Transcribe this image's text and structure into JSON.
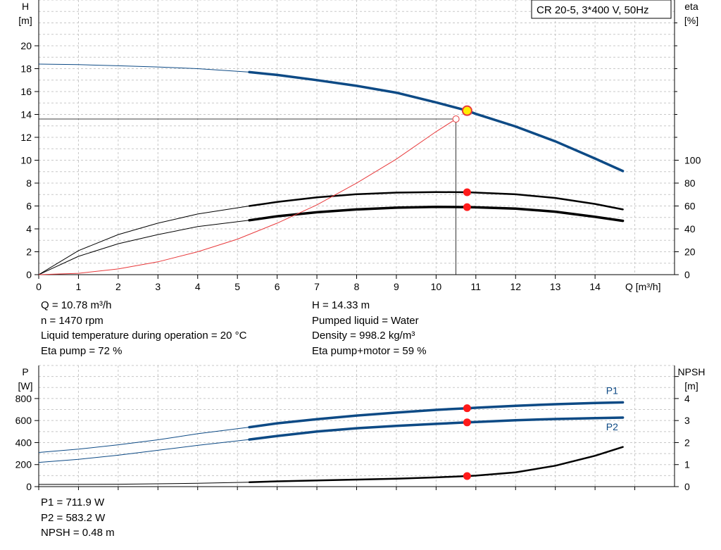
{
  "title_box": "CR 20-5, 3*400 V, 50Hz",
  "chart_data": [
    {
      "type": "line",
      "name": "Head and efficiency",
      "x_axis": {
        "label": "Q [m³/h]",
        "range": [
          0,
          16
        ],
        "ticks": [
          0,
          1,
          2,
          3,
          4,
          5,
          6,
          7,
          8,
          9,
          10,
          11,
          12,
          13,
          14
        ]
      },
      "y_axis_left": {
        "label_top": "H",
        "label_unit": "[m]",
        "range": [
          0,
          24
        ],
        "ticks": [
          0,
          2,
          4,
          6,
          8,
          10,
          12,
          14,
          16,
          18,
          20
        ]
      },
      "y_axis_right": {
        "label_top": "eta",
        "label_unit": "[%]",
        "range": [
          0,
          240
        ],
        "ticks": [
          0,
          20,
          40,
          60,
          80,
          100
        ]
      },
      "grid": true,
      "series": [
        {
          "key": "H",
          "axis": "left",
          "color": "#0d4a85",
          "x": [
            0,
            1,
            2,
            3,
            4,
            5.3,
            6,
            7,
            8,
            9,
            10,
            10.78,
            11,
            12,
            13,
            14,
            14.7
          ],
          "y": [
            18.4,
            18.35,
            18.25,
            18.15,
            18.0,
            17.7,
            17.45,
            17.0,
            16.5,
            15.9,
            15.05,
            14.33,
            14.05,
            12.95,
            11.65,
            10.15,
            9.05
          ],
          "thick_from": 5.3
        },
        {
          "key": "eta_pump",
          "axis": "right",
          "color": "#000000",
          "x": [
            0,
            1,
            2,
            3,
            4,
            5.3,
            6,
            7,
            8,
            9,
            10,
            10.78,
            11,
            12,
            13,
            14,
            14.7
          ],
          "y": [
            0,
            21,
            35,
            45,
            53,
            60,
            63.5,
            67.5,
            70.3,
            71.7,
            72.2,
            72,
            71.7,
            70.2,
            67,
            61.8,
            57
          ],
          "thick_from": 5.3
        },
        {
          "key": "eta_pump_motor",
          "axis": "right",
          "color": "#000000",
          "x": [
            0,
            1,
            2,
            3,
            4,
            5.3,
            6,
            7,
            8,
            9,
            10,
            10.78,
            11,
            12,
            13,
            14,
            14.7
          ],
          "y": [
            0,
            16,
            27,
            35,
            42,
            47.5,
            51,
            54.5,
            57,
            58.5,
            59.2,
            59,
            58.8,
            57.7,
            55,
            50.5,
            47
          ],
          "thick_from": 5.3
        },
        {
          "key": "system",
          "axis": "left",
          "color": "#e8393b",
          "x": [
            0,
            1,
            2,
            3,
            4,
            5,
            6,
            7,
            8,
            9,
            10,
            10.5
          ],
          "y": [
            0,
            0.12,
            0.5,
            1.12,
            2.0,
            3.1,
            4.5,
            6.1,
            8.0,
            10.1,
            12.5,
            13.6
          ]
        }
      ],
      "duty_point": {
        "q": 10.78,
        "h": 14.33,
        "eta_pump": 72,
        "eta_pump_motor": 59
      },
      "system_point": {
        "q": 10.5,
        "h": 13.6
      }
    },
    {
      "type": "line",
      "name": "Power and NPSH",
      "x_axis": {
        "range": [
          0,
          16
        ]
      },
      "y_axis_left": {
        "label_top": "P",
        "label_unit": "[W]",
        "range": [
          0,
          1100
        ],
        "ticks": [
          0,
          200,
          400,
          600,
          800
        ]
      },
      "y_axis_right": {
        "label_top": "NPSH",
        "label_unit": "[m]",
        "range": [
          0,
          5.5
        ],
        "ticks": [
          0,
          1,
          2,
          3,
          4
        ]
      },
      "grid": true,
      "series": [
        {
          "key": "P1",
          "label": "P1",
          "axis": "left",
          "color": "#0d4a85",
          "x": [
            0,
            1,
            2,
            3,
            4,
            5.3,
            6,
            7,
            8,
            9,
            10,
            10.78,
            11,
            12,
            13,
            14,
            14.7
          ],
          "y": [
            310,
            340,
            380,
            425,
            480,
            540,
            575,
            612,
            645,
            672,
            697,
            711.9,
            716,
            734,
            748,
            760,
            765
          ],
          "thick_from": 5.3
        },
        {
          "key": "P2",
          "label": "P2",
          "axis": "left",
          "color": "#0d4a85",
          "x": [
            0,
            1,
            2,
            3,
            4,
            5.3,
            6,
            7,
            8,
            9,
            10,
            10.78,
            11,
            12,
            13,
            14,
            14.7
          ],
          "y": [
            220,
            248,
            285,
            330,
            375,
            428,
            460,
            500,
            530,
            552,
            570,
            583.2,
            587,
            603,
            614,
            622,
            627
          ],
          "thick_from": 5.3
        },
        {
          "key": "NPSH",
          "axis": "right",
          "color": "#000000",
          "x": [
            0,
            2,
            4,
            5.3,
            6,
            7,
            8,
            9,
            10,
            10.78,
            11,
            12,
            13,
            14,
            14.7
          ],
          "y": [
            0.1,
            0.11,
            0.15,
            0.2,
            0.24,
            0.28,
            0.32,
            0.36,
            0.42,
            0.48,
            0.5,
            0.65,
            0.95,
            1.4,
            1.8
          ],
          "thick_from": 5.3
        }
      ],
      "duty_point": {
        "q": 10.78,
        "P1": 711.9,
        "P2": 583.2,
        "NPSH": 0.48
      }
    }
  ],
  "info_upper": {
    "col1": [
      "Q = 10.78 m³/h",
      "n = 1470 rpm",
      "Liquid temperature during operation = 20 °C",
      "Eta pump = 72 %"
    ],
    "col2": [
      "H = 14.33 m",
      "Pumped liquid = Water",
      "Density = 998.2 kg/m³",
      "Eta pump+motor = 59 %"
    ]
  },
  "info_lower": [
    "P1 = 711.9 W",
    "P2 = 583.2 W",
    "NPSH = 0.48 m"
  ]
}
